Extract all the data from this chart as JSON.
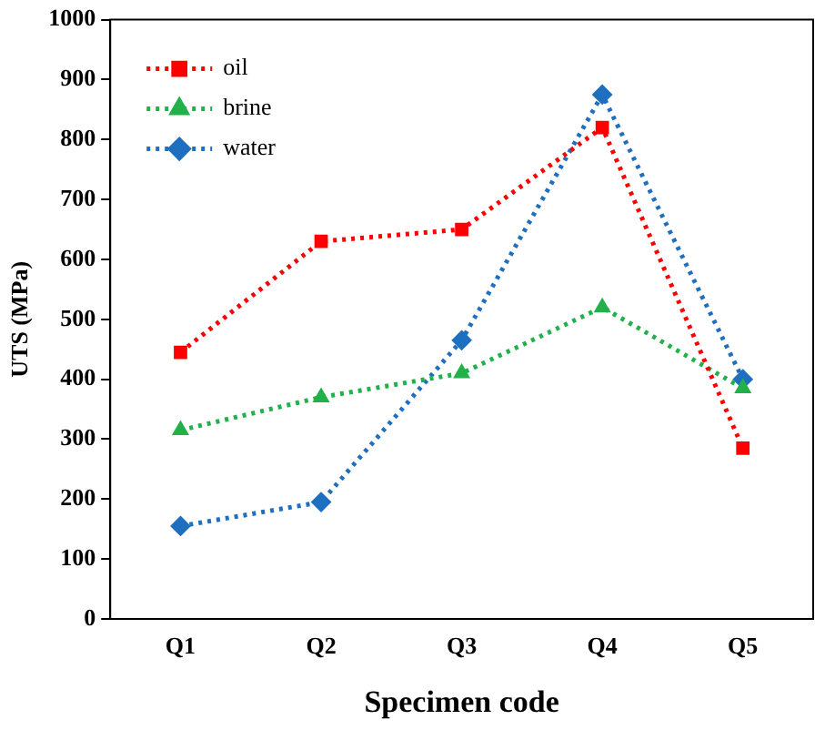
{
  "chart_data": {
    "type": "line",
    "xlabel": "Specimen code",
    "ylabel": "UTS (MPa)",
    "categories": [
      "Q1",
      "Q2",
      "Q3",
      "Q4",
      "Q5"
    ],
    "series": [
      {
        "name": "oil",
        "color": "#ff0000",
        "marker": "square",
        "values": [
          445,
          630,
          650,
          820,
          285
        ]
      },
      {
        "name": "brine",
        "color": "#22b04a",
        "marker": "triangle",
        "values": [
          315,
          370,
          410,
          520,
          385
        ]
      },
      {
        "name": "water",
        "color": "#1f6fc0",
        "marker": "diamond",
        "values": [
          155,
          195,
          465,
          875,
          400
        ]
      }
    ],
    "ylim": [
      0,
      1000
    ],
    "yticks": [
      0,
      100,
      200,
      300,
      400,
      500,
      600,
      700,
      800,
      900,
      1000
    ],
    "grid": false,
    "legend": "top left",
    "line_style": "dotted"
  }
}
